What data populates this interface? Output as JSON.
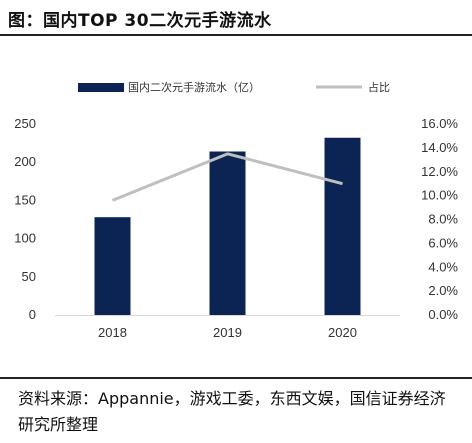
{
  "figure": {
    "title": "图：国内TOP 30二次元手游流水",
    "source": "资料来源：Appannie，游戏工委，东西文娱，国信证券经济研究所整理"
  },
  "chart_data": {
    "type": "bar",
    "categories": [
      "2018",
      "2019",
      "2020"
    ],
    "series": [
      {
        "name": "国内二次元手游流水（亿）",
        "kind": "bar",
        "axis": "left",
        "color": "#0b2454",
        "values": [
          128,
          214,
          232
        ]
      },
      {
        "name": "占比",
        "kind": "line",
        "axis": "right",
        "color": "#bfbfbf",
        "values": [
          9.6,
          13.5,
          11.0
        ]
      }
    ],
    "y_left": {
      "min": 0,
      "max": 250,
      "step": 50,
      "ticks": [
        "0",
        "50",
        "100",
        "150",
        "200",
        "250"
      ]
    },
    "y_right": {
      "min": 0,
      "max": 16,
      "step": 2,
      "ticks": [
        "0.0%",
        "2.0%",
        "4.0%",
        "6.0%",
        "8.0%",
        "10.0%",
        "12.0%",
        "14.0%",
        "16.0%"
      ]
    },
    "legend_position": "top",
    "grid": false
  }
}
